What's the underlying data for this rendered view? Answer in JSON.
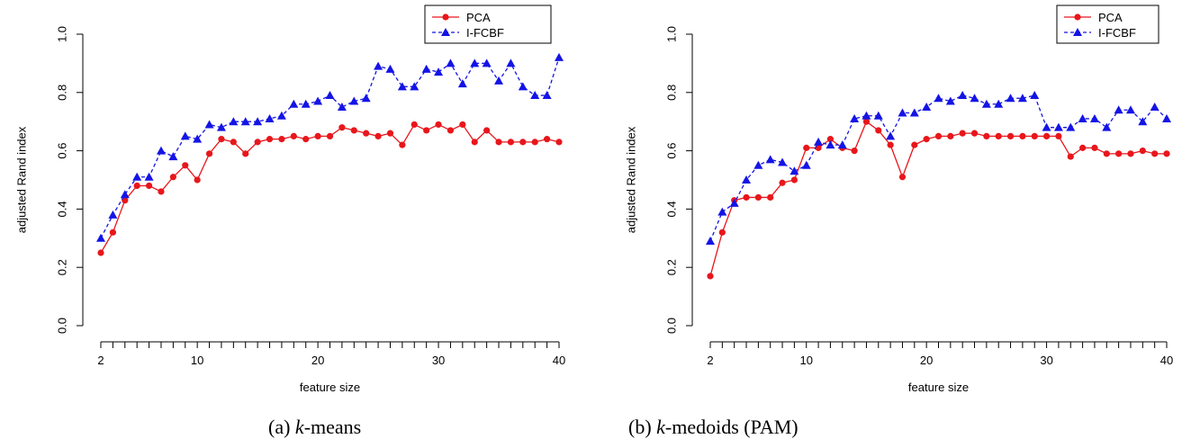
{
  "chart_data": [
    {
      "type": "line",
      "caption_prefix": "(a) ",
      "caption_italic": "k",
      "caption_suffix": "-means",
      "xlabel": "feature size",
      "ylabel": "adjusted Rand index",
      "xlim": [
        2,
        40
      ],
      "ylim": [
        0,
        1
      ],
      "xticks": [
        2,
        10,
        20,
        30,
        40
      ],
      "yticks": [
        "0.0",
        "0.2",
        "0.4",
        "0.6",
        "0.8",
        "1.0"
      ],
      "legend_position": "top-right",
      "x": [
        2,
        3,
        4,
        5,
        6,
        7,
        8,
        9,
        10,
        11,
        12,
        13,
        14,
        15,
        16,
        17,
        18,
        19,
        20,
        21,
        22,
        23,
        24,
        25,
        26,
        27,
        28,
        29,
        30,
        31,
        32,
        33,
        34,
        35,
        36,
        37,
        38,
        39,
        40
      ],
      "series": [
        {
          "name": "PCA",
          "color": "#e8161b",
          "marker": "circle",
          "dash": "solid",
          "values": [
            0.25,
            0.32,
            0.43,
            0.48,
            0.48,
            0.46,
            0.51,
            0.55,
            0.5,
            0.59,
            0.64,
            0.63,
            0.59,
            0.63,
            0.64,
            0.64,
            0.65,
            0.64,
            0.65,
            0.65,
            0.68,
            0.67,
            0.66,
            0.65,
            0.66,
            0.62,
            0.69,
            0.67,
            0.69,
            0.67,
            0.69,
            0.63,
            0.67,
            0.63,
            0.63,
            0.63,
            0.63,
            0.64,
            0.63
          ]
        },
        {
          "name": "I-FCBF",
          "color": "#1414e6",
          "marker": "triangle",
          "dash": "dashed",
          "values": [
            0.3,
            0.38,
            0.45,
            0.51,
            0.51,
            0.6,
            0.58,
            0.65,
            0.64,
            0.69,
            0.68,
            0.7,
            0.7,
            0.7,
            0.71,
            0.72,
            0.76,
            0.76,
            0.77,
            0.79,
            0.75,
            0.77,
            0.78,
            0.89,
            0.88,
            0.82,
            0.82,
            0.88,
            0.87,
            0.9,
            0.83,
            0.9,
            0.9,
            0.84,
            0.9,
            0.82,
            0.79,
            0.79,
            0.92
          ]
        }
      ]
    },
    {
      "type": "line",
      "caption_prefix": "(b) ",
      "caption_italic": "k",
      "caption_suffix": "-medoids (PAM)",
      "xlabel": "feature size",
      "ylabel": "adjusted Rand index",
      "xlim": [
        2,
        40
      ],
      "ylim": [
        0,
        1
      ],
      "xticks": [
        2,
        10,
        20,
        30,
        40
      ],
      "yticks": [
        "0.0",
        "0.2",
        "0.4",
        "0.6",
        "0.8",
        "1.0"
      ],
      "legend_position": "top-right",
      "x": [
        2,
        3,
        4,
        5,
        6,
        7,
        8,
        9,
        10,
        11,
        12,
        13,
        14,
        15,
        16,
        17,
        18,
        19,
        20,
        21,
        22,
        23,
        24,
        25,
        26,
        27,
        28,
        29,
        30,
        31,
        32,
        33,
        34,
        35,
        36,
        37,
        38,
        39,
        40
      ],
      "series": [
        {
          "name": "PCA",
          "color": "#e8161b",
          "marker": "circle",
          "dash": "solid",
          "values": [
            0.17,
            0.32,
            0.43,
            0.44,
            0.44,
            0.44,
            0.49,
            0.5,
            0.61,
            0.61,
            0.64,
            0.61,
            0.6,
            0.7,
            0.67,
            0.62,
            0.51,
            0.62,
            0.64,
            0.65,
            0.65,
            0.66,
            0.66,
            0.65,
            0.65,
            0.65,
            0.65,
            0.65,
            0.65,
            0.65,
            0.58,
            0.61,
            0.61,
            0.59,
            0.59,
            0.59,
            0.6,
            0.59,
            0.59
          ]
        },
        {
          "name": "I-FCBF",
          "color": "#1414e6",
          "marker": "triangle",
          "dash": "dashed",
          "values": [
            0.29,
            0.39,
            0.42,
            0.5,
            0.55,
            0.57,
            0.56,
            0.53,
            0.55,
            0.63,
            0.62,
            0.62,
            0.71,
            0.72,
            0.72,
            0.65,
            0.73,
            0.73,
            0.75,
            0.78,
            0.77,
            0.79,
            0.78,
            0.76,
            0.76,
            0.78,
            0.78,
            0.79,
            0.68,
            0.68,
            0.68,
            0.71,
            0.71,
            0.68,
            0.74,
            0.74,
            0.7,
            0.75,
            0.71
          ]
        }
      ]
    }
  ]
}
